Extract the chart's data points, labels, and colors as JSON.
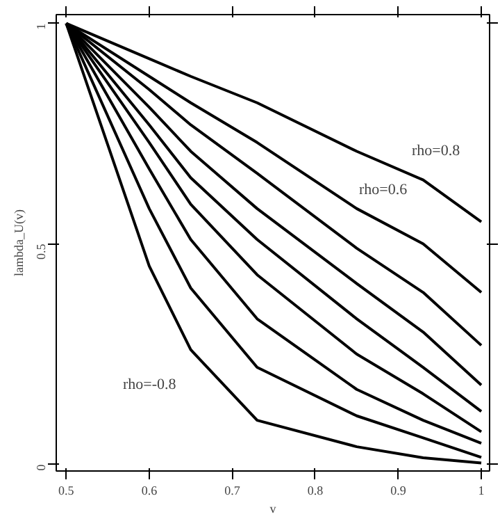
{
  "chart_data": {
    "type": "line",
    "xlabel": "v",
    "ylabel": "lambda_U(v)",
    "x": [
      0.5,
      0.6,
      0.65,
      0.73,
      0.85,
      0.93,
      1
    ],
    "series": [
      {
        "color": "#000000",
        "values": [
          1,
          0.92,
          0.88,
          0.82,
          0.71,
          0.645,
          0.55
        ]
      },
      {
        "color": "#000000",
        "values": [
          1,
          0.88,
          0.82,
          0.73,
          0.58,
          0.5,
          0.39
        ]
      },
      {
        "color": "#000000",
        "values": [
          1,
          0.85,
          0.77,
          0.66,
          0.49,
          0.39,
          0.27
        ]
      },
      {
        "color": "#000000",
        "values": [
          1,
          0.81,
          0.71,
          0.58,
          0.41,
          0.3,
          0.18
        ]
      },
      {
        "color": "#000000",
        "values": [
          1,
          0.77,
          0.65,
          0.51,
          0.33,
          0.22,
          0.12
        ]
      },
      {
        "color": "#000000",
        "values": [
          1,
          0.73,
          0.59,
          0.43,
          0.25,
          0.16,
          0.074
        ]
      },
      {
        "color": "#000000",
        "values": [
          1,
          0.67,
          0.51,
          0.33,
          0.17,
          0.1,
          0.048
        ]
      },
      {
        "color": "#000000",
        "values": [
          1,
          0.58,
          0.4,
          0.22,
          0.11,
          0.06,
          0.016
        ]
      },
      {
        "color": "#000000",
        "values": [
          1,
          0.45,
          0.26,
          0.1,
          0.04,
          0.015,
          0.003
        ]
      }
    ],
    "annotations": [
      "rho=0.8",
      "rho=0.6",
      "rho=-0.8"
    ],
    "xlim": [
      0.488,
      1.01
    ],
    "ylim": [
      -0.015,
      1.02
    ],
    "xticks": [
      0.5,
      0.6,
      0.7,
      0.8,
      0.9,
      {
        "value": 1,
        "label": "1"
      }
    ],
    "yticks": [
      0,
      0.5,
      {
        "value": 1,
        "label": "1"
      }
    ],
    "grid": false,
    "marker": "none",
    "line_style": "solid"
  }
}
